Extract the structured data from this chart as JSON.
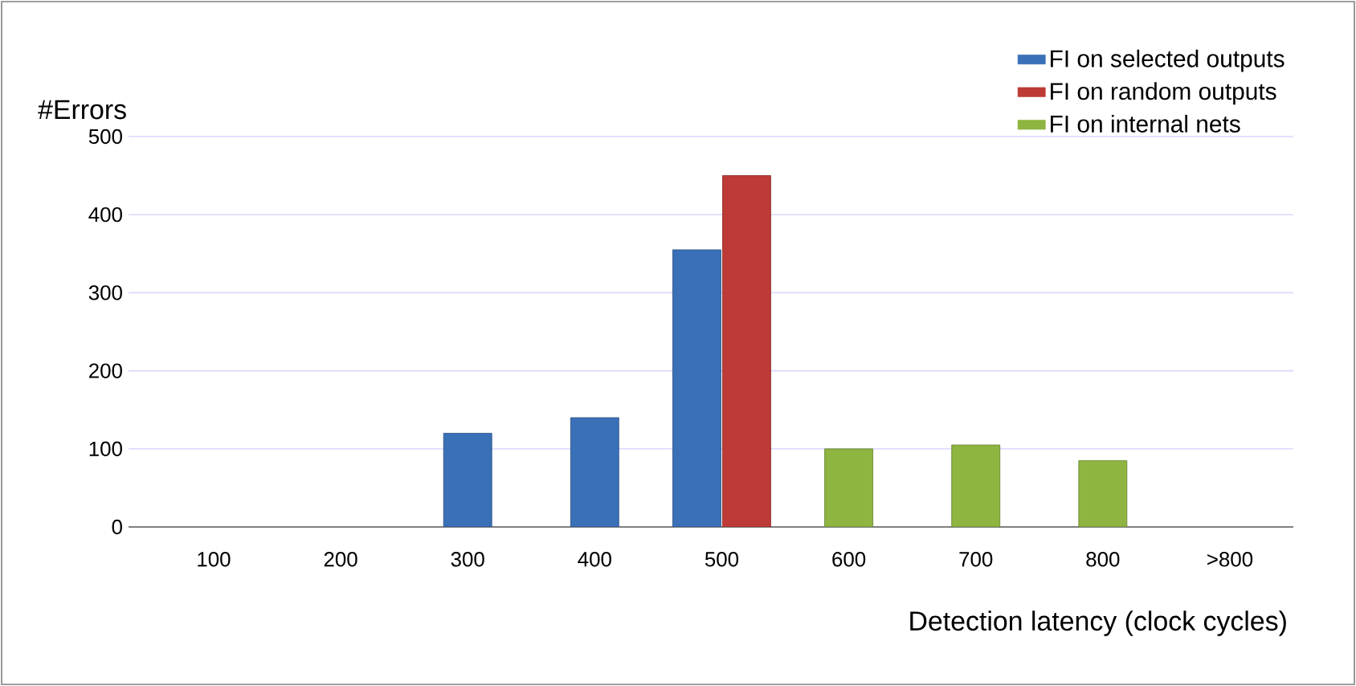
{
  "chart_data": {
    "type": "bar",
    "xlabel": "Detection latency (clock cycles)",
    "ylabel": "#Errors",
    "categories": [
      "100",
      "200",
      "300",
      "400",
      "500",
      "600",
      "700",
      "800",
      ">800"
    ],
    "series": [
      {
        "name": "FI on selected outputs",
        "color": "#3a70b8",
        "values": [
          null,
          null,
          120,
          140,
          355,
          null,
          null,
          null,
          null
        ]
      },
      {
        "name": "FI on random outputs",
        "color": "#be3a36",
        "values": [
          null,
          null,
          null,
          null,
          450,
          null,
          null,
          null,
          null
        ]
      },
      {
        "name": "FI on internal nets",
        "color": "#8db540",
        "values": [
          null,
          null,
          null,
          null,
          null,
          100,
          105,
          85,
          null
        ]
      }
    ],
    "ylim": [
      0,
      500
    ],
    "yticks": [
      0,
      100,
      200,
      300,
      400,
      500
    ],
    "grid": "y",
    "legend": "top right"
  }
}
